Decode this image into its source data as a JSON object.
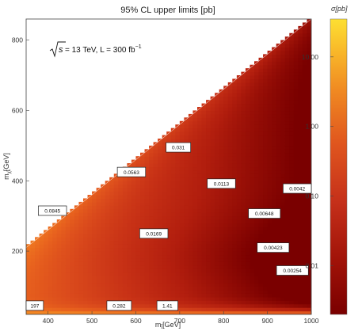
{
  "chart_data": {
    "type": "heatmap",
    "title": "95% CL upper limits [pb]",
    "xlabel": "m_t̃ [GeV]",
    "xlabel_main": "m",
    "xlabel_sub": "t̃",
    "xlabel_unit": "[GeV]",
    "ylabel": "m_χ̃ [GeV]",
    "ylabel_main": "m",
    "ylabel_sub": "χ̃",
    "ylabel_unit": "[GeV]",
    "annotation": {
      "sqrt_s": "s",
      "energy": " = 13 TeV, L = 300 fb",
      "exponent": "−1"
    },
    "xlim": [
      350,
      1000
    ],
    "ylim": [
      20,
      860
    ],
    "x_ticks": [
      400,
      500,
      600,
      700,
      800,
      900,
      1000
    ],
    "y_ticks": [
      200,
      400,
      600,
      800
    ],
    "colorbar": {
      "label": "σ[pb]",
      "scale": "log",
      "range": [
        0.002,
        35
      ],
      "ticks": [
        {
          "value": 10,
          "label": "10.00"
        },
        {
          "value": 1,
          "label": "1.00"
        },
        {
          "value": 0.1,
          "label": "0.10"
        },
        {
          "value": 0.01,
          "label": "0.01"
        }
      ]
    },
    "allowed_region": "m_chi < m_stop - 140",
    "contour_labels": [
      {
        "x": 697,
        "y": 495,
        "text": "0.031"
      },
      {
        "x": 590,
        "y": 425,
        "text": "0.0563"
      },
      {
        "x": 410,
        "y": 315,
        "text": "0.0845"
      },
      {
        "x": 795,
        "y": 392,
        "text": "0.0113"
      },
      {
        "x": 987,
        "y": 378,
        "text": "0.0042"
      },
      {
        "x": 641,
        "y": 250,
        "text": "0.0169"
      },
      {
        "x": 893,
        "y": 307,
        "text": "0.00648"
      },
      {
        "x": 913,
        "y": 210,
        "text": "0.00423"
      },
      {
        "x": 957,
        "y": 145,
        "text": "0.00254"
      },
      {
        "x": 356,
        "y": 45,
        "text": "197"
      },
      {
        "x": 562,
        "y": 45,
        "text": "0.282"
      },
      {
        "x": 672,
        "y": 45,
        "text": "1.41"
      }
    ]
  }
}
